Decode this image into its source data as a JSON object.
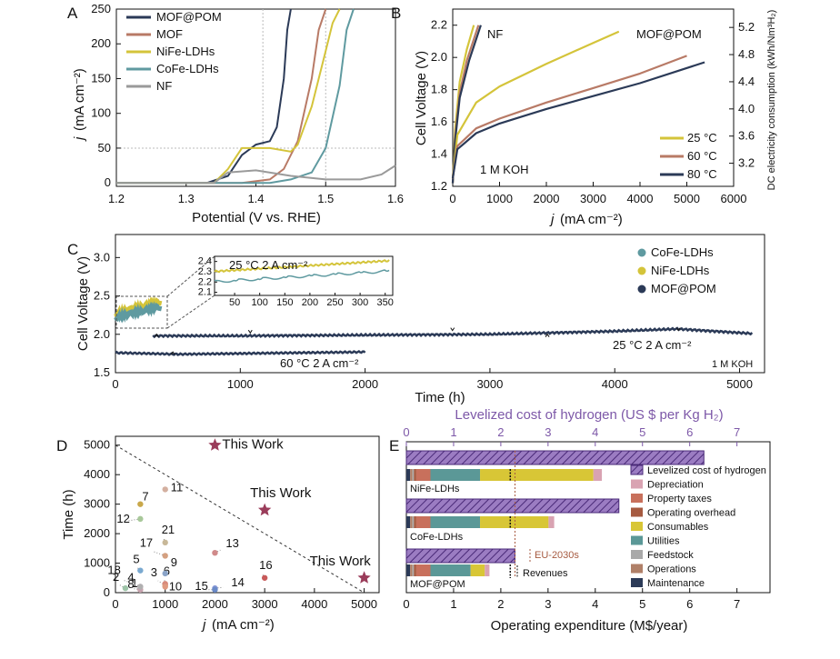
{
  "colors": {
    "mofpom": "#2b3a57",
    "mof": "#b87a66",
    "nife": "#d4c43a",
    "cofe": "#5f9aa0",
    "nf": "#9a9a9a",
    "lcoh": "#7d58a8",
    "depreciation": "#d9a3b2",
    "property": "#c8705c",
    "overhead": "#a65a40",
    "consumables": "#d8c636",
    "utilities": "#5b9897",
    "feedstock": "#a9a9a9",
    "operations": "#b08068",
    "maintenance": "#2b3a57",
    "star": "#9a3c5a"
  },
  "panelA": {
    "label": "A",
    "xlabel": "Potential (V vs. RHE)",
    "ylabel_j": "j",
    "ylabel_rest": "(mA cm⁻²)",
    "xticks": [
      "1.2",
      "1.3",
      "1.4",
      "1.5",
      "1.6"
    ],
    "yticks": [
      "0",
      "50",
      "100",
      "150",
      "200",
      "250"
    ],
    "legend": [
      "MOF@POM",
      "MOF",
      "NiFe-LDHs",
      "CoFe-LDHs",
      "NF"
    ]
  },
  "panelB": {
    "label": "B",
    "xlabel_j": "j",
    "xlabel_rest": "(mA cm⁻²)",
    "ylabel": "Cell Voltage (V)",
    "y2label": "DC electricity consumption (kWh/Nm³H₂)",
    "xticks": [
      "0",
      "1000",
      "2000",
      "3000",
      "4000",
      "5000",
      "6000"
    ],
    "yticks": [
      "1.2",
      "1.4",
      "1.6",
      "1.8",
      "2.0",
      "2.2"
    ],
    "y2ticks": [
      "3.2",
      "3.6",
      "4.0",
      "4.4",
      "4.8",
      "5.2"
    ],
    "text_nf": "NF",
    "text_mofpom": "MOF@POM",
    "text_koh": "1 M KOH",
    "legend": [
      "25 °C",
      "60 °C",
      "80 °C"
    ]
  },
  "panelC": {
    "label": "C",
    "xlabel": "Time (h)",
    "ylabel": "Cell Voltage (V)",
    "xticks": [
      "0",
      "1000",
      "2000",
      "3000",
      "4000",
      "5000"
    ],
    "yticks": [
      "1.5",
      "2.0",
      "2.5",
      "3.0"
    ],
    "legend": [
      "CoFe-LDHs",
      "NiFe-LDHs",
      "MOF@POM"
    ],
    "inset_label": "25 °C    2 A cm⁻²",
    "inset_xticks": [
      "50",
      "100",
      "150",
      "200",
      "250",
      "300",
      "350"
    ],
    "inset_yticks": [
      "2.1",
      "2.2",
      "2.3",
      "2.4"
    ],
    "label_25": "25 °C    2 A cm⁻²",
    "label_60": "60 °C    2 A cm⁻²",
    "text_koh": "1 M KOH"
  },
  "panelD": {
    "label": "D",
    "xlabel_j": "j",
    "xlabel_rest": "(mA cm⁻²)",
    "ylabel": "Time (h)",
    "xticks": [
      "0",
      "1000",
      "2000",
      "3000",
      "4000",
      "5000"
    ],
    "yticks": [
      "0",
      "1000",
      "2000",
      "3000",
      "4000",
      "5000"
    ],
    "this_work": "This Work"
  },
  "panelE": {
    "label": "E",
    "top_label": "Levelized cost of hydrogen (US $ per Kg H₂)",
    "xlabel": "Operating expenditure (M$/year)",
    "xticks": [
      "0",
      "1",
      "2",
      "3",
      "4",
      "5",
      "6",
      "7"
    ],
    "top_ticks": [
      "0",
      "1",
      "2",
      "3",
      "4",
      "5",
      "6",
      "7"
    ],
    "legend": [
      "Levelized cost of hydrogen",
      "Depreciation",
      "Property taxes",
      "Operating overhead",
      "Consumables",
      "Utilities",
      "Feedstock",
      "Operations",
      "Maintenance"
    ],
    "cat_nife": "NiFe-LDHs",
    "cat_cofe": "CoFe-LDHs",
    "cat_mof": "MOF@POM",
    "eu": "EU-2030s",
    "revenues": "Revenues"
  },
  "chart_data": [
    {
      "type": "line",
      "panel": "A",
      "xlabel": "Potential (V vs. RHE)",
      "ylabel": "j (mA cm⁻²)",
      "xlim": [
        1.2,
        1.6
      ],
      "ylim": [
        -5,
        250
      ],
      "series": [
        {
          "name": "MOF@POM",
          "x": [
            1.2,
            1.33,
            1.36,
            1.38,
            1.4,
            1.42,
            1.43,
            1.44,
            1.445,
            1.45
          ],
          "y": [
            0,
            0,
            10,
            40,
            55,
            60,
            80,
            150,
            220,
            250
          ]
        },
        {
          "name": "MOF",
          "x": [
            1.2,
            1.38,
            1.42,
            1.44,
            1.46,
            1.48,
            1.49,
            1.5
          ],
          "y": [
            0,
            0,
            5,
            20,
            60,
            150,
            220,
            250
          ]
        },
        {
          "name": "NiFe-LDHs",
          "x": [
            1.2,
            1.34,
            1.36,
            1.38,
            1.42,
            1.45,
            1.46,
            1.48,
            1.5,
            1.51,
            1.52
          ],
          "y": [
            0,
            0,
            20,
            50,
            50,
            45,
            55,
            110,
            190,
            230,
            250
          ]
        },
        {
          "name": "CoFe-LDHs",
          "x": [
            1.2,
            1.42,
            1.45,
            1.48,
            1.5,
            1.52,
            1.53,
            1.54
          ],
          "y": [
            0,
            0,
            5,
            15,
            50,
            140,
            220,
            250
          ]
        },
        {
          "name": "NF",
          "x": [
            1.2,
            1.34,
            1.36,
            1.4,
            1.45,
            1.5,
            1.55,
            1.58,
            1.6
          ],
          "y": [
            0,
            0,
            15,
            18,
            10,
            5,
            5,
            12,
            25
          ]
        }
      ]
    },
    {
      "type": "line",
      "panel": "B",
      "xlabel": "j (mA cm⁻²)",
      "ylabel": "Cell Voltage (V)",
      "xlim": [
        0,
        6000
      ],
      "ylim": [
        1.2,
        2.3
      ],
      "y2label": "DC electricity consumption (kWh/Nm³H₂)",
      "y2lim": [
        2.86,
        5.47
      ],
      "series": [
        {
          "name": "NF 25 °C",
          "x": [
            0,
            50,
            150,
            300,
            450
          ],
          "y": [
            1.22,
            1.55,
            1.85,
            2.05,
            2.2
          ]
        },
        {
          "name": "NF 60 °C",
          "x": [
            0,
            50,
            150,
            300,
            550
          ],
          "y": [
            1.22,
            1.5,
            1.78,
            1.98,
            2.2
          ]
        },
        {
          "name": "NF 80 °C",
          "x": [
            0,
            50,
            150,
            350,
            600
          ],
          "y": [
            1.22,
            1.48,
            1.75,
            1.98,
            2.2
          ]
        },
        {
          "name": "MOF@POM 25 °C",
          "x": [
            0,
            100,
            500,
            1000,
            2000,
            3000,
            3550
          ],
          "y": [
            1.25,
            1.52,
            1.72,
            1.82,
            1.96,
            2.09,
            2.16
          ]
        },
        {
          "name": "MOF@POM 60 °C",
          "x": [
            0,
            100,
            500,
            1000,
            2000,
            3000,
            4000,
            5000
          ],
          "y": [
            1.25,
            1.45,
            1.56,
            1.62,
            1.72,
            1.81,
            1.9,
            2.01
          ]
        },
        {
          "name": "MOF@POM 80 °C",
          "x": [
            0,
            100,
            500,
            1000,
            2000,
            3000,
            4000,
            5380
          ],
          "y": [
            1.25,
            1.43,
            1.53,
            1.59,
            1.68,
            1.76,
            1.84,
            1.97
          ]
        }
      ]
    },
    {
      "type": "line",
      "panel": "C",
      "xlabel": "Time (h)",
      "ylabel": "Cell Voltage (V)",
      "xlim": [
        0,
        5200
      ],
      "ylim": [
        1.5,
        3.3
      ],
      "series": [
        {
          "name": "CoFe-LDHs",
          "x": [
            0,
            100,
            200,
            360
          ],
          "y": [
            2.22,
            2.26,
            2.3,
            2.36
          ]
        },
        {
          "name": "NiFe-LDHs",
          "x": [
            0,
            100,
            200,
            360
          ],
          "y": [
            2.27,
            2.32,
            2.37,
            2.43
          ]
        },
        {
          "name": "MOF@POM 25 °C",
          "x": [
            300,
            1000,
            2000,
            3000,
            4000,
            4500,
            5100
          ],
          "y": [
            1.98,
            1.98,
            1.99,
            2.0,
            2.04,
            2.07,
            2.01
          ]
        },
        {
          "name": "MOF@POM 60 °C",
          "x": [
            0,
            500,
            1000,
            1500,
            2000
          ],
          "y": [
            1.76,
            1.74,
            1.75,
            1.76,
            1.77
          ]
        }
      ]
    },
    {
      "type": "scatter",
      "panel": "D",
      "xlabel": "j (mA cm⁻²)",
      "ylabel": "Time (h)",
      "xlim": [
        0,
        5300
      ],
      "ylim": [
        0,
        5300
      ],
      "series": [
        {
          "name": "references",
          "labels": [
            "1",
            "2",
            "3",
            "4",
            "5",
            "6",
            "7",
            "8",
            "9",
            "10",
            "11",
            "12",
            "13",
            "14",
            "15",
            "16",
            "17",
            "18",
            "21"
          ],
          "x": [
            500,
            200,
            1000,
            500,
            500,
            1000,
            500,
            500,
            1000,
            1000,
            1000,
            500,
            2000,
            2000,
            2000,
            3000,
            1000,
            500,
            1000
          ],
          "y": [
            100,
            150,
            250,
            200,
            750,
            300,
            3000,
            100,
            650,
            200,
            3500,
            2500,
            1350,
            150,
            100,
            500,
            1250,
            200,
            1700
          ]
        },
        {
          "name": "This Work",
          "x": [
            2000,
            3000,
            5000
          ],
          "y": [
            5000,
            2800,
            500
          ]
        }
      ]
    },
    {
      "type": "bar",
      "panel": "E",
      "xlabel": "Operating expenditure (M$/year)",
      "xlim": [
        0,
        7.7
      ],
      "top_axis": "Levelized cost of hydrogen (US $ per Kg H₂)",
      "top_lim": [
        0,
        7.7
      ],
      "categories": [
        "NiFe-LDHs",
        "CoFe-LDHs",
        "MOF@POM"
      ],
      "lcoh": [
        6.3,
        4.5,
        2.3
      ],
      "series": [
        {
          "name": "Maintenance",
          "values": [
            0.08,
            0.08,
            0.08
          ]
        },
        {
          "name": "Operations",
          "values": [
            0.05,
            0.05,
            0.05
          ]
        },
        {
          "name": "Feedstock",
          "values": [
            0.03,
            0.03,
            0.03
          ]
        },
        {
          "name": "Operating overhead",
          "values": [
            0.05,
            0.05,
            0.05
          ]
        },
        {
          "name": "Property taxes",
          "values": [
            0.3,
            0.3,
            0.3
          ]
        },
        {
          "name": "Utilities",
          "values": [
            1.05,
            1.05,
            0.85
          ]
        },
        {
          "name": "Consumables",
          "values": [
            2.4,
            1.45,
            0.3
          ]
        },
        {
          "name": "Depreciation",
          "values": [
            0.18,
            0.12,
            0.1
          ]
        }
      ],
      "eu_2030s": 2.3,
      "revenues": 2.3
    }
  ]
}
